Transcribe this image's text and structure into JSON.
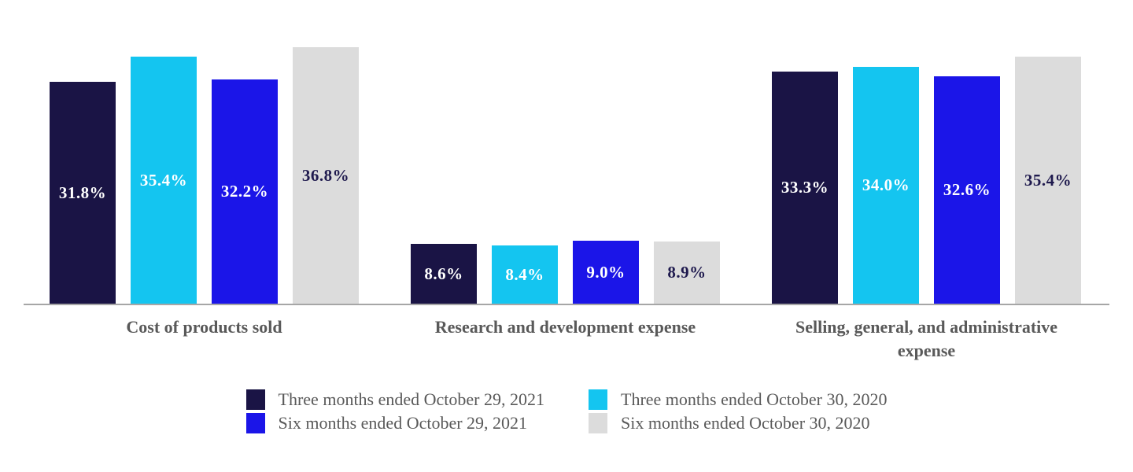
{
  "chart_data": {
    "type": "bar",
    "categories": [
      "Cost of products sold",
      "Research and development expense",
      "Selling, general, and administrative expense"
    ],
    "series": [
      {
        "name": "Three months ended October 29, 2021",
        "color": "#1a1445",
        "label_color": "#ffffff",
        "values": [
          31.8,
          8.6,
          33.3
        ]
      },
      {
        "name": "Three months ended October 30, 2020",
        "color": "#14c5f0",
        "label_color": "#ffffff",
        "values": [
          35.4,
          8.4,
          34.0
        ]
      },
      {
        "name": "Six months ended October 29, 2021",
        "color": "#1b15e8",
        "label_color": "#ffffff",
        "values": [
          32.2,
          9.0,
          32.6
        ]
      },
      {
        "name": "Six months ended October 30, 2020",
        "color": "#dcdcdc",
        "label_color": "#1f1a4e",
        "values": [
          36.8,
          8.9,
          35.4
        ]
      }
    ],
    "value_suffix": "%",
    "title": "",
    "xlabel": "",
    "ylabel": "",
    "ylim": [
      0,
      40
    ],
    "grid": false,
    "axis_ticks_visible": false,
    "legend_position": "bottom",
    "legend_order": [
      0,
      2,
      1,
      3
    ],
    "colors": {
      "category_label": "#595959",
      "legend_text": "#595959",
      "axis_line": "#a6a6a6",
      "background": "#ffffff"
    }
  }
}
